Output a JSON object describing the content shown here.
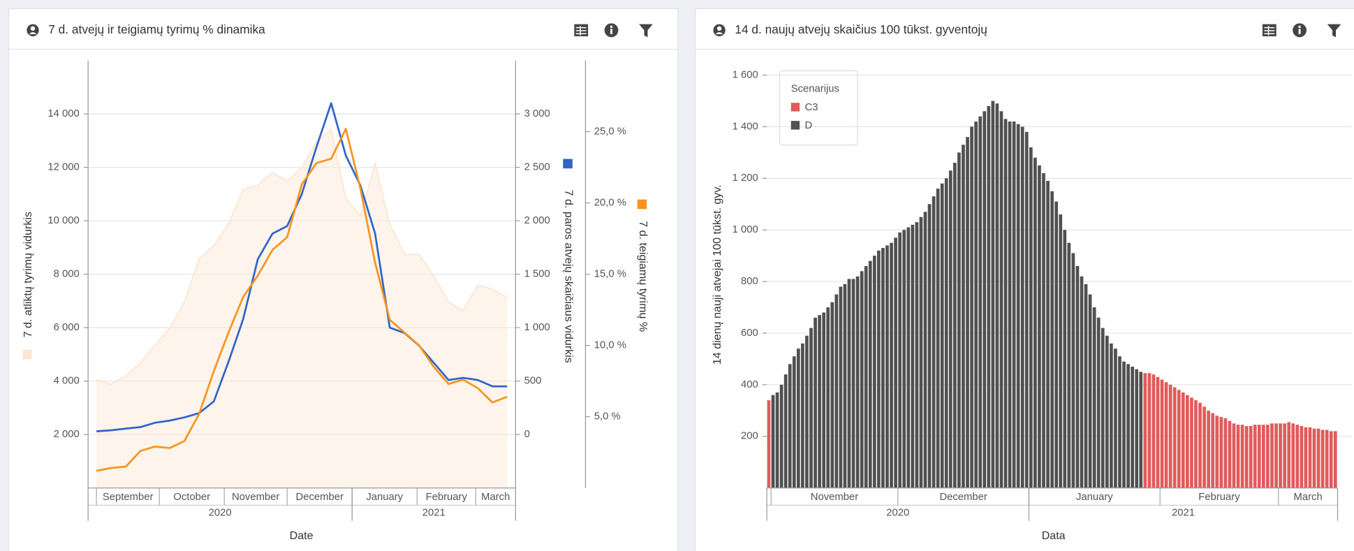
{
  "chart_data": [
    {
      "type": "line",
      "title": "7 d. atvejų ir teigiamų tyrimų % dinamika",
      "xlabel": "Date",
      "x": [
        "2020-09-01",
        "2020-09-08",
        "2020-09-15",
        "2020-09-22",
        "2020-09-29",
        "2020-10-06",
        "2020-10-13",
        "2020-10-20",
        "2020-10-27",
        "2020-11-03",
        "2020-11-10",
        "2020-11-17",
        "2020-11-24",
        "2020-12-01",
        "2020-12-08",
        "2020-12-15",
        "2020-12-22",
        "2020-12-29",
        "2021-01-05",
        "2021-01-12",
        "2021-01-19",
        "2021-01-26",
        "2021-02-02",
        "2021-02-09",
        "2021-02-16",
        "2021-02-23",
        "2021-03-02",
        "2021-03-09",
        "2021-03-16"
      ],
      "xlim": [
        "2020-08-28",
        "2021-03-20"
      ],
      "xticks": [
        {
          "value": "2020-09-01",
          "label": "September"
        },
        {
          "value": "2020-10-01",
          "label": "October"
        },
        {
          "value": "2020-11-01",
          "label": "November"
        },
        {
          "value": "2020-12-01",
          "label": "December"
        },
        {
          "value": "2021-01-01",
          "label": "January"
        },
        {
          "value": "2021-02-01",
          "label": "February"
        },
        {
          "value": "2021-03-01",
          "label": "March"
        }
      ],
      "xgroups": [
        {
          "value": "2020-01-01",
          "label": "2020"
        },
        {
          "value": "2021-01-01",
          "label": "2021"
        }
      ],
      "ylim": [
        0,
        16000
      ],
      "yticks": [
        {
          "value": 2000,
          "label": "2 000"
        },
        {
          "value": 4000,
          "label": "4 000"
        },
        {
          "value": 6000,
          "label": "6 000"
        },
        {
          "value": 8000,
          "label": "8 000"
        },
        {
          "value": 10000,
          "label": "10 000"
        },
        {
          "value": 12000,
          "label": "12 000"
        },
        {
          "value": 14000,
          "label": "14 000"
        }
      ],
      "y2lim": [
        -500,
        3500
      ],
      "y2ticks": [
        0,
        500,
        {
          "value": 1000,
          "label": "1 000"
        },
        {
          "value": 1500,
          "label": "1 500"
        },
        {
          "value": 2000,
          "label": "2 000"
        },
        {
          "value": 2500,
          "label": "2 500"
        },
        {
          "value": 3000,
          "label": "3 000"
        }
      ],
      "y3lim": [
        0,
        30
      ],
      "y3ticks": [
        {
          "value": 5,
          "label": "5,0 %"
        },
        {
          "value": 10,
          "label": "10,0 %"
        },
        {
          "value": 15,
          "label": "15,0 %"
        },
        {
          "value": 20,
          "label": "20,0 %"
        },
        {
          "value": 25,
          "label": "25,0 %"
        }
      ],
      "grid": true,
      "series": [
        {
          "name": "7 d. atliktų tyrimų vidurkis",
          "type": "area",
          "axis": "y",
          "color": "#fde6d2",
          "values": [
            4050,
            3880,
            4200,
            4690,
            5340,
            5990,
            6960,
            8580,
            9060,
            9870,
            11170,
            11330,
            11810,
            11490,
            11980,
            12950,
            13430,
            10840,
            10190,
            12140,
            9870,
            8740,
            8740,
            7930,
            6960,
            6630,
            7600,
            7440,
            7120
          ]
        },
        {
          "name": "7 d. paros atvejų skaičiaus vidurkis",
          "axis": "y2",
          "color": "#2f65c8",
          "values": [
            30,
            40,
            55,
            70,
            110,
            130,
            160,
            200,
            310,
            680,
            1080,
            1640,
            1880,
            1950,
            2250,
            2690,
            3100,
            2610,
            2330,
            1880,
            1000,
            950,
            830,
            670,
            510,
            530,
            510,
            450,
            450
          ]
        },
        {
          "name": "7 d. teigiamų tyrimų %",
          "axis": "y3",
          "color": "#f7931e",
          "values": [
            1.2,
            1.4,
            1.5,
            2.6,
            2.9,
            2.8,
            3.3,
            5.2,
            8.2,
            10.9,
            13.4,
            14.9,
            16.7,
            17.6,
            21.3,
            22.8,
            23.1,
            25.2,
            21,
            15.8,
            11.8,
            10.9,
            10,
            8.5,
            7.3,
            7.6,
            7,
            6,
            6.4
          ]
        }
      ]
    },
    {
      "type": "bar",
      "title": "14 d. naujų atvejų skaičius 100 tūkst. gyventojų",
      "xlabel": "Data",
      "ylabel": "14 dienų nauji atvejai 100 tūkst. gyv.",
      "legend_title": "Scenarijus",
      "x": [
        "2020-10-31",
        "2020-11-01",
        "2020-11-02",
        "2020-11-03",
        "2020-11-04",
        "2020-11-05",
        "2020-11-06",
        "2020-11-07",
        "2020-11-08",
        "2020-11-09",
        "2020-11-10",
        "2020-11-11",
        "2020-11-12",
        "2020-11-13",
        "2020-11-14",
        "2020-11-15",
        "2020-11-16",
        "2020-11-17",
        "2020-11-18",
        "2020-11-19",
        "2020-11-20",
        "2020-11-21",
        "2020-11-22",
        "2020-11-23",
        "2020-11-24",
        "2020-11-25",
        "2020-11-26",
        "2020-11-27",
        "2020-11-28",
        "2020-11-29",
        "2020-11-30",
        "2020-12-01",
        "2020-12-02",
        "2020-12-03",
        "2020-12-04",
        "2020-12-05",
        "2020-12-06",
        "2020-12-07",
        "2020-12-08",
        "2020-12-09",
        "2020-12-10",
        "2020-12-11",
        "2020-12-12",
        "2020-12-13",
        "2020-12-14",
        "2020-12-15",
        "2020-12-16",
        "2020-12-17",
        "2020-12-18",
        "2020-12-19",
        "2020-12-20",
        "2020-12-21",
        "2020-12-22",
        "2020-12-23",
        "2020-12-24",
        "2020-12-25",
        "2020-12-26",
        "2020-12-27",
        "2020-12-28",
        "2020-12-29",
        "2020-12-30",
        "2020-12-31",
        "2021-01-01",
        "2021-01-02",
        "2021-01-03",
        "2021-01-04",
        "2021-01-05",
        "2021-01-06",
        "2021-01-07",
        "2021-01-08",
        "2021-01-09",
        "2021-01-10",
        "2021-01-11",
        "2021-01-12",
        "2021-01-13",
        "2021-01-14",
        "2021-01-15",
        "2021-01-16",
        "2021-01-17",
        "2021-01-18",
        "2021-01-19",
        "2021-01-20",
        "2021-01-21",
        "2021-01-22",
        "2021-01-23",
        "2021-01-24",
        "2021-01-25",
        "2021-01-26",
        "2021-01-27",
        "2021-01-28",
        "2021-01-29",
        "2021-01-30",
        "2021-01-31",
        "2021-02-01",
        "2021-02-02",
        "2021-02-03",
        "2021-02-04",
        "2021-02-05",
        "2021-02-06",
        "2021-02-07",
        "2021-02-08",
        "2021-02-09",
        "2021-02-10",
        "2021-02-11",
        "2021-02-12",
        "2021-02-13",
        "2021-02-14",
        "2021-02-15",
        "2021-02-16",
        "2021-02-17",
        "2021-02-18",
        "2021-02-19",
        "2021-02-20",
        "2021-02-21",
        "2021-02-22",
        "2021-02-23",
        "2021-02-24",
        "2021-02-25",
        "2021-02-26",
        "2021-02-27",
        "2021-02-28",
        "2021-03-01",
        "2021-03-02",
        "2021-03-03",
        "2021-03-04",
        "2021-03-05",
        "2021-03-06",
        "2021-03-07",
        "2021-03-08",
        "2021-03-09",
        "2021-03-10",
        "2021-03-11",
        "2021-03-12",
        "2021-03-13",
        "2021-03-14"
      ],
      "xlim": [
        "2020-10-31",
        "2021-03-15"
      ],
      "xticks": [
        {
          "value": "2020-11-01",
          "label": "November"
        },
        {
          "value": "2020-12-01",
          "label": "December"
        },
        {
          "value": "2021-01-01",
          "label": "January"
        },
        {
          "value": "2021-02-01",
          "label": "February"
        },
        {
          "value": "2021-03-01",
          "label": "March"
        }
      ],
      "xgroups": [
        {
          "value": "2020-01-01",
          "label": "2020"
        },
        {
          "value": "2021-01-01",
          "label": "2021"
        }
      ],
      "ylim": [
        0,
        1650
      ],
      "yticks": [
        200,
        400,
        600,
        800,
        {
          "value": 1000,
          "label": "1 000"
        },
        {
          "value": 1200,
          "label": "1 200"
        },
        {
          "value": 1400,
          "label": "1 400"
        },
        {
          "value": 1600,
          "label": "1 600"
        }
      ],
      "grid": true,
      "series": [
        {
          "name": "C3",
          "color": "#e25b5b",
          "values": [
            340,
            null,
            null,
            null,
            null,
            null,
            null,
            null,
            null,
            null,
            null,
            null,
            null,
            null,
            null,
            null,
            null,
            null,
            null,
            null,
            null,
            null,
            null,
            null,
            null,
            null,
            null,
            null,
            null,
            null,
            null,
            null,
            null,
            null,
            null,
            null,
            null,
            null,
            null,
            null,
            null,
            null,
            null,
            null,
            null,
            null,
            null,
            null,
            null,
            null,
            null,
            null,
            null,
            null,
            null,
            null,
            null,
            null,
            null,
            null,
            null,
            null,
            null,
            null,
            null,
            null,
            null,
            null,
            null,
            null,
            null,
            null,
            null,
            null,
            null,
            null,
            null,
            null,
            null,
            null,
            null,
            null,
            null,
            null,
            null,
            null,
            null,
            null,
            null,
            445,
            445,
            440,
            430,
            420,
            410,
            400,
            390,
            380,
            370,
            360,
            350,
            340,
            330,
            315,
            300,
            290,
            280,
            275,
            270,
            260,
            250,
            245,
            245,
            240,
            240,
            245,
            245,
            245,
            245,
            250,
            250,
            250,
            250,
            255,
            250,
            245,
            240,
            235,
            235,
            230,
            230,
            225,
            225,
            220,
            220
          ]
        },
        {
          "name": "D",
          "color": "#505050",
          "values": [
            null,
            360,
            370,
            400,
            440,
            480,
            510,
            540,
            560,
            590,
            620,
            660,
            670,
            680,
            700,
            720,
            750,
            780,
            790,
            810,
            810,
            820,
            840,
            860,
            880,
            900,
            920,
            930,
            940,
            950,
            970,
            990,
            1000,
            1010,
            1020,
            1030,
            1050,
            1070,
            1100,
            1130,
            1160,
            1180,
            1200,
            1230,
            1260,
            1300,
            1330,
            1360,
            1400,
            1420,
            1440,
            1460,
            1480,
            1500,
            1490,
            1460,
            1430,
            1420,
            1420,
            1410,
            1400,
            1380,
            1320,
            1280,
            1250,
            1220,
            1190,
            1150,
            1110,
            1060,
            1000,
            950,
            910,
            860,
            820,
            790,
            750,
            700,
            660,
            620,
            590,
            560,
            540,
            510,
            490,
            480,
            470,
            460,
            450,
            null,
            null,
            null,
            null,
            null,
            null,
            null,
            null,
            null,
            null,
            null,
            null,
            null,
            null,
            null,
            null,
            null,
            null,
            null,
            null,
            null,
            null,
            null,
            null,
            null,
            null,
            null,
            null,
            null,
            null,
            null,
            null,
            null,
            null,
            null,
            null,
            null,
            null,
            null,
            null,
            null,
            null,
            null,
            null,
            null,
            null
          ]
        }
      ]
    }
  ]
}
